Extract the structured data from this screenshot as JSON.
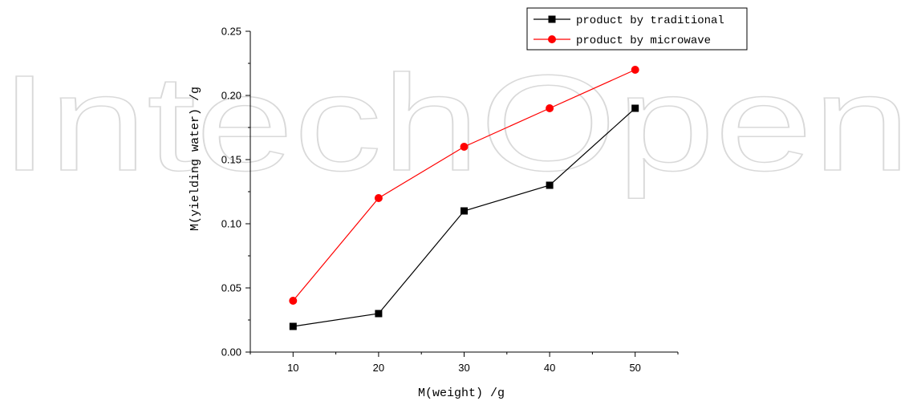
{
  "watermark": "IntechOpen",
  "chart_data": {
    "type": "line",
    "title": "",
    "xlabel": "M(weight) /g",
    "ylabel": "M(yielding water) /g",
    "x": [
      10,
      20,
      30,
      40,
      50
    ],
    "xlim": [
      5,
      55
    ],
    "ylim": [
      0,
      0.25
    ],
    "xticks": [
      10,
      20,
      30,
      40,
      50
    ],
    "yticks": [
      0.0,
      0.05,
      0.1,
      0.15,
      0.2,
      0.25
    ],
    "ytick_labels": [
      "0.00",
      "0.05",
      "0.10",
      "0.15",
      "0.20",
      "0.25"
    ],
    "grid": false,
    "legend_position": "top-right",
    "series": [
      {
        "name": "product by traditional",
        "values": [
          0.02,
          0.03,
          0.11,
          0.13,
          0.19
        ],
        "color": "#000000",
        "marker": "square"
      },
      {
        "name": "product by microwave",
        "values": [
          0.04,
          0.12,
          0.16,
          0.19,
          0.22
        ],
        "color": "#ff0000",
        "marker": "circle"
      }
    ]
  }
}
